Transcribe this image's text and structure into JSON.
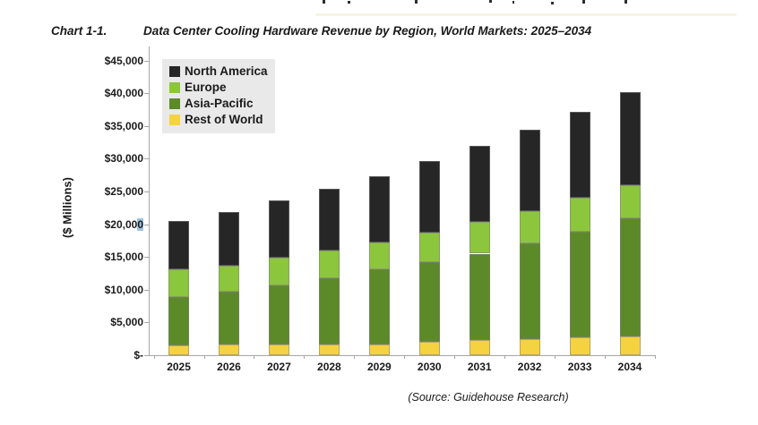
{
  "page": {
    "chart_label": "Chart 1-1.",
    "chart_title": "Data Center Cooling Hardware Revenue by Region, World Markets: 2025–2034",
    "source_note": "(Source: Guidehouse Research)"
  },
  "chart_data": {
    "type": "bar",
    "stacked": true,
    "title": "Data Center Cooling Hardware Revenue by Region, World Markets: 2025–2034",
    "ylabel": "($ Millions)",
    "categories": [
      "2025",
      "2026",
      "2027",
      "2028",
      "2029",
      "2030",
      "2031",
      "2032",
      "2033",
      "2034"
    ],
    "series": [
      {
        "name": "Rest of World",
        "color": "#F5D340",
        "values": [
          1500,
          1600,
          1600,
          1700,
          1700,
          2000,
          2300,
          2500,
          2700,
          2850
        ]
      },
      {
        "name": "Asia-Pacific",
        "color": "#5D8A28",
        "values": [
          7400,
          8100,
          9100,
          10000,
          11400,
          12200,
          13200,
          14600,
          16200,
          18050
        ]
      },
      {
        "name": "Europe",
        "color": "#8CC63C",
        "values": [
          4250,
          4000,
          4150,
          4300,
          4150,
          4500,
          4800,
          4900,
          5200,
          5000
        ]
      },
      {
        "name": "North America",
        "color": "#262626",
        "values": [
          7350,
          8200,
          8750,
          9400,
          10100,
          10900,
          11600,
          12400,
          13000,
          14300
        ]
      }
    ],
    "totals": [
      20500,
      21900,
      23600,
      25400,
      27350,
      29600,
      31900,
      34400,
      37100,
      40200
    ],
    "legend_order": [
      "North America",
      "Europe",
      "Asia-Pacific",
      "Rest of World"
    ],
    "legend_bg": "#E9E9E9",
    "legend_position": "top-left-inside",
    "grid": false,
    "ylim": [
      0,
      45000
    ],
    "ytick_step": 5000,
    "ytick_labels": [
      "$-",
      "$5,000",
      "$10,000",
      "$15,000",
      "$20,000",
      "$25,000",
      "$30,000",
      "$35,000",
      "$40,000",
      "$45,000"
    ],
    "axis_color": "#A6A6A6"
  },
  "annotations": {
    "ytick_selection": {
      "label": "$20,000",
      "highlighted_suffix": "0",
      "highlight_color": "#9EC3DE"
    }
  }
}
